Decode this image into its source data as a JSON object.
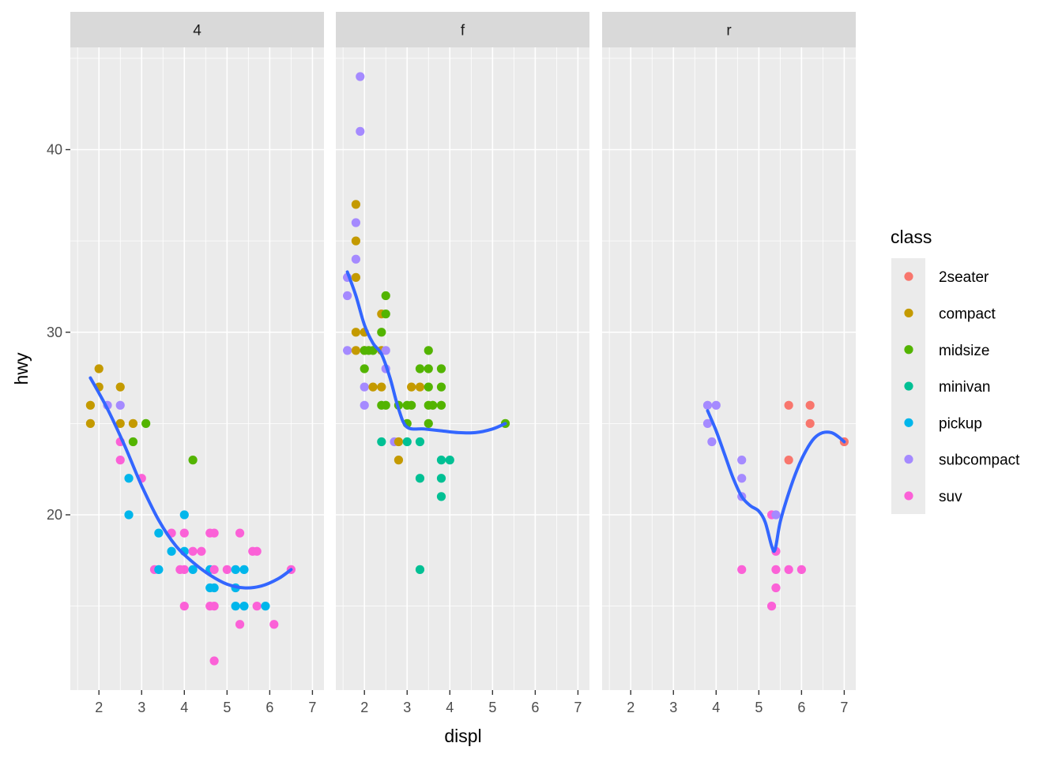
{
  "chart_data": {
    "type": "scatter",
    "title": "",
    "xlabel": "displ",
    "ylabel": "hwy",
    "xlim": [
      1.33,
      7.27
    ],
    "ylim": [
      10.4,
      45.6
    ],
    "x_ticks": [
      2,
      3,
      4,
      5,
      6,
      7
    ],
    "y_ticks": [
      20,
      30,
      40
    ],
    "grid": true,
    "legend": {
      "title": "class",
      "position": "right",
      "entries": [
        {
          "label": "2seater",
          "color": "#F8766D"
        },
        {
          "label": "compact",
          "color": "#C49A00"
        },
        {
          "label": "midsize",
          "color": "#53B400"
        },
        {
          "label": "minivan",
          "color": "#00C094"
        },
        {
          "label": "pickup",
          "color": "#00B6EB"
        },
        {
          "label": "subcompact",
          "color": "#A58AFF"
        },
        {
          "label": "suv",
          "color": "#FB61D7"
        }
      ]
    },
    "smooth_color": "#3366FF",
    "facets": [
      {
        "label": "4",
        "points": [
          [
            1.8,
            26,
            "compact"
          ],
          [
            1.8,
            25,
            "compact"
          ],
          [
            2.0,
            28,
            "compact"
          ],
          [
            2.0,
            27,
            "compact"
          ],
          [
            2.2,
            26,
            "subcompact"
          ],
          [
            2.5,
            27,
            "compact"
          ],
          [
            2.5,
            25,
            "compact"
          ],
          [
            2.5,
            26,
            "subcompact"
          ],
          [
            2.5,
            24,
            "suv"
          ],
          [
            2.5,
            23,
            "suv"
          ],
          [
            2.8,
            25,
            "compact"
          ],
          [
            2.8,
            24,
            "midsize"
          ],
          [
            3.1,
            25,
            "midsize"
          ],
          [
            2.7,
            22,
            "pickup"
          ],
          [
            2.7,
            20,
            "pickup"
          ],
          [
            3.0,
            22,
            "suv"
          ],
          [
            3.3,
            17,
            "suv"
          ],
          [
            3.4,
            19,
            "pickup"
          ],
          [
            3.4,
            17,
            "pickup"
          ],
          [
            3.7,
            18,
            "pickup"
          ],
          [
            3.7,
            19,
            "suv"
          ],
          [
            3.9,
            17,
            "suv"
          ],
          [
            4.0,
            20,
            "pickup"
          ],
          [
            4.0,
            18,
            "pickup"
          ],
          [
            4.0,
            19,
            "suv"
          ],
          [
            4.0,
            17,
            "suv"
          ],
          [
            4.0,
            15,
            "suv"
          ],
          [
            4.2,
            23,
            "midsize"
          ],
          [
            4.2,
            17,
            "pickup"
          ],
          [
            4.2,
            18,
            "suv"
          ],
          [
            4.4,
            18,
            "suv"
          ],
          [
            4.6,
            19,
            "suv"
          ],
          [
            4.6,
            17,
            "pickup"
          ],
          [
            4.6,
            16,
            "pickup"
          ],
          [
            4.6,
            15,
            "suv"
          ],
          [
            4.7,
            19,
            "suv"
          ],
          [
            4.7,
            17,
            "suv"
          ],
          [
            4.7,
            16,
            "pickup"
          ],
          [
            4.7,
            15,
            "suv"
          ],
          [
            4.7,
            12,
            "suv"
          ],
          [
            5.0,
            17,
            "suv"
          ],
          [
            5.2,
            17,
            "pickup"
          ],
          [
            5.2,
            16,
            "pickup"
          ],
          [
            5.2,
            15,
            "pickup"
          ],
          [
            5.3,
            19,
            "suv"
          ],
          [
            5.3,
            14,
            "suv"
          ],
          [
            5.4,
            17,
            "pickup"
          ],
          [
            5.4,
            15,
            "pickup"
          ],
          [
            5.6,
            18,
            "suv"
          ],
          [
            5.7,
            18,
            "suv"
          ],
          [
            5.7,
            15,
            "suv"
          ],
          [
            5.9,
            15,
            "pickup"
          ],
          [
            6.1,
            14,
            "suv"
          ],
          [
            6.5,
            17,
            "suv"
          ]
        ],
        "smooth": [
          [
            1.8,
            27.5
          ],
          [
            2.2,
            25.8
          ],
          [
            2.6,
            23.8
          ],
          [
            3.0,
            21.6
          ],
          [
            3.4,
            19.7
          ],
          [
            3.8,
            18.3
          ],
          [
            4.2,
            17.4
          ],
          [
            4.6,
            16.7
          ],
          [
            5.0,
            16.2
          ],
          [
            5.4,
            16.0
          ],
          [
            5.8,
            16.1
          ],
          [
            6.2,
            16.5
          ],
          [
            6.5,
            17.0
          ]
        ]
      },
      {
        "label": "f",
        "points": [
          [
            1.6,
            33,
            "subcompact"
          ],
          [
            1.6,
            32,
            "subcompact"
          ],
          [
            1.6,
            29,
            "subcompact"
          ],
          [
            1.8,
            37,
            "compact"
          ],
          [
            1.8,
            35,
            "compact"
          ],
          [
            1.8,
            33,
            "compact"
          ],
          [
            1.8,
            36,
            "subcompact"
          ],
          [
            1.8,
            34,
            "subcompact"
          ],
          [
            1.8,
            30,
            "compact"
          ],
          [
            1.8,
            29,
            "compact"
          ],
          [
            1.9,
            44,
            "subcompact"
          ],
          [
            1.9,
            41,
            "subcompact"
          ],
          [
            2.0,
            30,
            "compact"
          ],
          [
            2.0,
            29,
            "compact"
          ],
          [
            2.0,
            29,
            "midsize"
          ],
          [
            2.0,
            28,
            "midsize"
          ],
          [
            2.0,
            27,
            "subcompact"
          ],
          [
            2.0,
            26,
            "subcompact"
          ],
          [
            2.1,
            29,
            "midsize"
          ],
          [
            2.2,
            27,
            "compact"
          ],
          [
            2.2,
            29,
            "midsize"
          ],
          [
            2.4,
            31,
            "compact"
          ],
          [
            2.4,
            29,
            "compact"
          ],
          [
            2.4,
            27,
            "compact"
          ],
          [
            2.4,
            30,
            "midsize"
          ],
          [
            2.4,
            26,
            "midsize"
          ],
          [
            2.4,
            24,
            "minivan"
          ],
          [
            2.5,
            32,
            "midsize"
          ],
          [
            2.5,
            31,
            "midsize"
          ],
          [
            2.5,
            29,
            "subcompact"
          ],
          [
            2.5,
            28,
            "subcompact"
          ],
          [
            2.5,
            26,
            "midsize"
          ],
          [
            2.7,
            24,
            "subcompact"
          ],
          [
            2.8,
            26,
            "midsize"
          ],
          [
            2.8,
            24,
            "compact"
          ],
          [
            2.8,
            23,
            "compact"
          ],
          [
            3.0,
            26,
            "midsize"
          ],
          [
            3.0,
            25,
            "midsize"
          ],
          [
            3.0,
            24,
            "minivan"
          ],
          [
            3.1,
            27,
            "compact"
          ],
          [
            3.1,
            26,
            "midsize"
          ],
          [
            3.3,
            28,
            "midsize"
          ],
          [
            3.3,
            27,
            "compact"
          ],
          [
            3.3,
            24,
            "minivan"
          ],
          [
            3.3,
            22,
            "minivan"
          ],
          [
            3.3,
            17,
            "minivan"
          ],
          [
            3.5,
            29,
            "midsize"
          ],
          [
            3.5,
            28,
            "midsize"
          ],
          [
            3.5,
            27,
            "midsize"
          ],
          [
            3.5,
            26,
            "midsize"
          ],
          [
            3.5,
            25,
            "midsize"
          ],
          [
            3.6,
            26,
            "midsize"
          ],
          [
            3.8,
            28,
            "midsize"
          ],
          [
            3.8,
            27,
            "midsize"
          ],
          [
            3.8,
            26,
            "midsize"
          ],
          [
            3.8,
            23,
            "minivan"
          ],
          [
            3.8,
            22,
            "minivan"
          ],
          [
            3.8,
            21,
            "minivan"
          ],
          [
            4.0,
            23,
            "minivan"
          ],
          [
            5.3,
            25,
            "midsize"
          ]
        ],
        "smooth": [
          [
            1.6,
            33.3
          ],
          [
            1.8,
            32.0
          ],
          [
            2.0,
            30.4
          ],
          [
            2.2,
            29.4
          ],
          [
            2.4,
            28.8
          ],
          [
            2.6,
            27.5
          ],
          [
            2.8,
            25.8
          ],
          [
            3.0,
            24.8
          ],
          [
            3.4,
            24.7
          ],
          [
            3.8,
            24.6
          ],
          [
            4.2,
            24.5
          ],
          [
            4.6,
            24.5
          ],
          [
            5.0,
            24.7
          ],
          [
            5.3,
            25.0
          ]
        ]
      },
      {
        "label": "r",
        "points": [
          [
            3.8,
            26,
            "subcompact"
          ],
          [
            3.8,
            25,
            "subcompact"
          ],
          [
            3.9,
            24,
            "subcompact"
          ],
          [
            4.0,
            26,
            "subcompact"
          ],
          [
            4.6,
            23,
            "subcompact"
          ],
          [
            4.6,
            22,
            "subcompact"
          ],
          [
            4.6,
            21,
            "subcompact"
          ],
          [
            4.6,
            17,
            "suv"
          ],
          [
            5.3,
            20,
            "suv"
          ],
          [
            5.3,
            15,
            "suv"
          ],
          [
            5.4,
            20,
            "subcompact"
          ],
          [
            5.4,
            18,
            "suv"
          ],
          [
            5.4,
            17,
            "suv"
          ],
          [
            5.4,
            16,
            "suv"
          ],
          [
            5.7,
            26,
            "2seater"
          ],
          [
            5.7,
            23,
            "2seater"
          ],
          [
            5.7,
            17,
            "suv"
          ],
          [
            6.0,
            17,
            "suv"
          ],
          [
            6.2,
            26,
            "2seater"
          ],
          [
            6.2,
            25,
            "2seater"
          ],
          [
            7.0,
            24,
            "2seater"
          ]
        ],
        "smooth": [
          [
            3.8,
            25.7
          ],
          [
            4.0,
            24.6
          ],
          [
            4.2,
            23.3
          ],
          [
            4.4,
            22.0
          ],
          [
            4.6,
            21.0
          ],
          [
            4.8,
            20.5
          ],
          [
            5.0,
            20.2
          ],
          [
            5.15,
            19.6
          ],
          [
            5.3,
            18.3
          ],
          [
            5.38,
            18.1
          ],
          [
            5.5,
            19.6
          ],
          [
            5.7,
            21.2
          ],
          [
            5.9,
            22.5
          ],
          [
            6.1,
            23.5
          ],
          [
            6.3,
            24.2
          ],
          [
            6.5,
            24.5
          ],
          [
            6.7,
            24.5
          ],
          [
            6.85,
            24.3
          ],
          [
            7.0,
            24.0
          ]
        ]
      }
    ]
  }
}
